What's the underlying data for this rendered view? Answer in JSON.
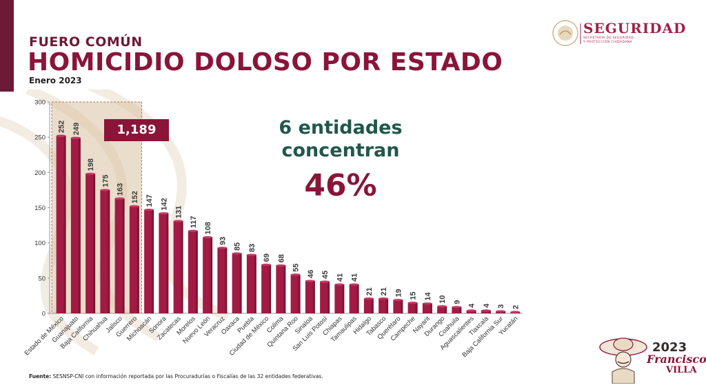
{
  "header": {
    "kicker": "FUERO COMÚN",
    "title": "HOMICIDIO DOLOSO POR ESTADO",
    "period": "Enero 2023"
  },
  "logo": {
    "name": "SEGURIDAD",
    "sub_line1": "SECRETARÍA DE SEGURIDAD",
    "sub_line2": "Y PROTECCIÓN CIUDADANA"
  },
  "callout": {
    "total": "1,189",
    "line1": "6 entidades",
    "line2": "concentran",
    "percent": "46%"
  },
  "footer": {
    "source_label": "Fuente:",
    "source_text": "SESNSP-CNI con información reportada por las Procuradurías o Fiscalías de las 32 entidades federativas."
  },
  "villa_logo": {
    "year": "2023",
    "name": "Francisco",
    "surname": "VILLA"
  },
  "colors": {
    "bar": "#a21b45",
    "bar_dark": "#6d0f2b",
    "accent": "#8a1538",
    "green": "#21574a",
    "highlight_fill": "#d9c1a0"
  },
  "chart_data": {
    "type": "bar",
    "categories": [
      "Estado de México",
      "Guanajuato",
      "Baja California",
      "Chihuahua",
      "Jalisco",
      "Guerrero",
      "Michoacán",
      "Sonora",
      "Zacatecas",
      "Morelos",
      "Nuevo León",
      "Veracruz",
      "Oaxaca",
      "Puebla",
      "Ciudad de México",
      "Colima",
      "Quintana Roo",
      "Sinaloa",
      "San Luis Potosí",
      "Chiapas",
      "Tamaulipas",
      "Hidalgo",
      "Tabasco",
      "Querétaro",
      "Campeche",
      "Nayarit",
      "Durango",
      "Coahuila",
      "Aguascalientes",
      "Tlaxcala",
      "Baja California Sur",
      "Yucatán"
    ],
    "values": [
      252,
      249,
      198,
      175,
      163,
      152,
      147,
      142,
      131,
      117,
      108,
      93,
      85,
      83,
      69,
      68,
      55,
      46,
      45,
      41,
      41,
      21,
      21,
      19,
      15,
      14,
      10,
      9,
      4,
      4,
      3,
      2
    ],
    "ylim": [
      0,
      300
    ],
    "yticks": [
      0,
      50,
      100,
      150,
      200,
      250,
      300
    ],
    "highlighted_count": 6,
    "grid": false
  }
}
